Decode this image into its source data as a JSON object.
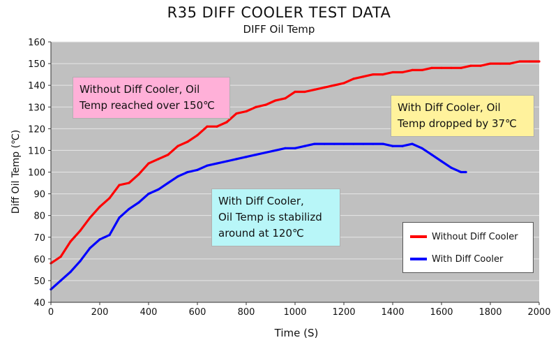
{
  "chart_data": {
    "type": "line",
    "title": "R35 DIFF COOLER TEST DATA",
    "subtitle": "DIFF Oil Temp",
    "xlabel": "Time (S)",
    "ylabel": "Diff Oil Temp (℃)",
    "xlim": [
      0,
      2000
    ],
    "ylim": [
      40,
      160
    ],
    "xticks": [
      0,
      200,
      400,
      600,
      800,
      1000,
      1200,
      1400,
      1600,
      1800,
      2000
    ],
    "yticks": [
      40,
      50,
      60,
      70,
      80,
      90,
      100,
      110,
      120,
      130,
      140,
      150,
      160
    ],
    "grid": true,
    "legend_position": "bottom-right",
    "series": [
      {
        "name": "Without Diff Cooler",
        "color": "#ff0000",
        "x": [
          0,
          40,
          80,
          120,
          160,
          200,
          240,
          280,
          320,
          360,
          400,
          440,
          480,
          520,
          560,
          600,
          640,
          680,
          720,
          760,
          800,
          840,
          880,
          920,
          960,
          1000,
          1040,
          1080,
          1120,
          1160,
          1200,
          1240,
          1280,
          1320,
          1360,
          1400,
          1440,
          1480,
          1520,
          1560,
          1600,
          1640,
          1680,
          1720,
          1760,
          1800,
          1840,
          1880,
          1920,
          1960,
          2000
        ],
        "values": [
          58,
          61,
          68,
          73,
          79,
          84,
          88,
          94,
          95,
          99,
          104,
          106,
          108,
          112,
          114,
          117,
          121,
          121,
          123,
          127,
          128,
          130,
          131,
          133,
          134,
          137,
          137,
          138,
          139,
          140,
          141,
          143,
          144,
          145,
          145,
          146,
          146,
          147,
          147,
          148,
          148,
          148,
          148,
          149,
          149,
          150,
          150,
          150,
          151,
          151,
          151
        ]
      },
      {
        "name": "With Diff Cooler",
        "color": "#0000ff",
        "x": [
          0,
          40,
          80,
          120,
          160,
          200,
          240,
          280,
          320,
          360,
          400,
          440,
          480,
          520,
          560,
          600,
          640,
          680,
          720,
          760,
          800,
          840,
          880,
          920,
          960,
          1000,
          1040,
          1080,
          1120,
          1160,
          1200,
          1240,
          1280,
          1320,
          1360,
          1400,
          1440,
          1480,
          1520,
          1560,
          1600,
          1640,
          1680,
          1700
        ],
        "values": [
          46,
          50,
          54,
          59,
          65,
          69,
          71,
          79,
          83,
          86,
          90,
          92,
          95,
          98,
          100,
          101,
          103,
          104,
          105,
          106,
          107,
          108,
          109,
          110,
          111,
          111,
          112,
          113,
          113,
          113,
          113,
          113,
          113,
          113,
          113,
          112,
          112,
          113,
          111,
          108,
          105,
          102,
          100,
          100
        ]
      }
    ]
  },
  "annotations": {
    "without": [
      "Without Diff Cooler, Oil",
      "Temp reached over 150℃"
    ],
    "stabilized": [
      "With Diff Cooler,",
      "Oil Temp is stabilizd",
      "around at 120℃"
    ],
    "dropped": [
      "With Diff Cooler, Oil",
      "Temp dropped by 37℃"
    ]
  },
  "colors": {
    "plot_background": "#c0c0c0",
    "grid": "#e6e6e6"
  }
}
